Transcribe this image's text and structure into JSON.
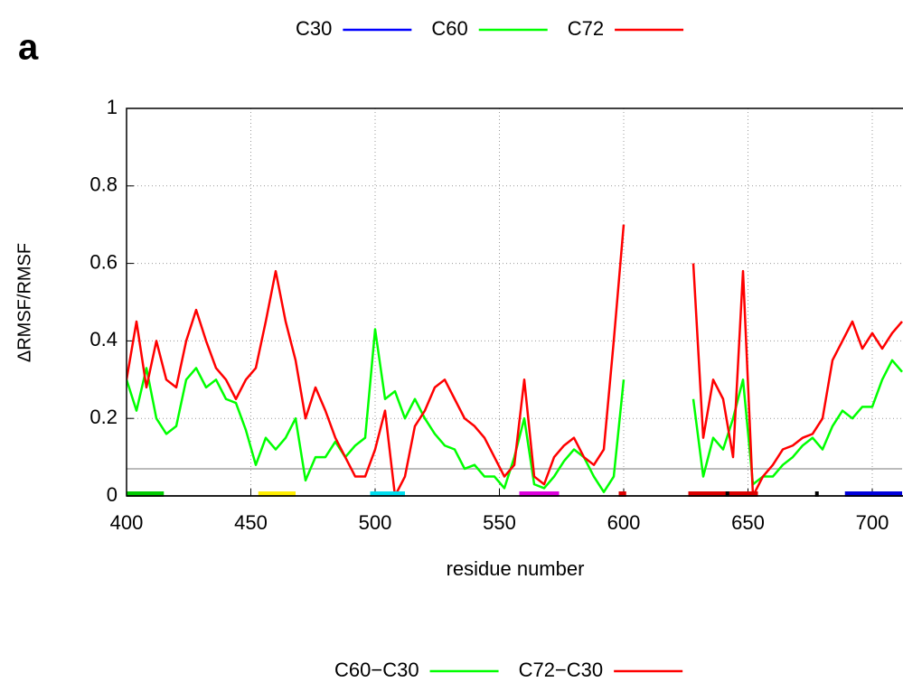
{
  "chart_data": {
    "type": "line",
    "panel_label": "a",
    "xlabel": "residue number",
    "ylabel": "ΔRMSF/RMSF",
    "xlim": [
      400,
      712
    ],
    "ylim": [
      0,
      1
    ],
    "xticks": [
      400,
      450,
      500,
      550,
      600,
      650,
      700
    ],
    "yticks": [
      0,
      0.2,
      0.4,
      0.6,
      0.8,
      1
    ],
    "grid": true,
    "reference_line": {
      "value": 0.07,
      "color": "#bbbbbb"
    },
    "legend_top": [
      {
        "name": "C30",
        "color": "#0000ff"
      },
      {
        "name": "C60",
        "color": "#00ff00"
      },
      {
        "name": "C72",
        "color": "#ff0000"
      }
    ],
    "domains": [
      {
        "start": 400,
        "end": 415,
        "color": "#00cc00"
      },
      {
        "start": 453,
        "end": 468,
        "color": "#ffee00"
      },
      {
        "start": 498,
        "end": 512,
        "color": "#00ddee"
      },
      {
        "start": 558,
        "end": 574,
        "color": "#dd00dd"
      },
      {
        "start": 598,
        "end": 601,
        "color": "#dd0000"
      },
      {
        "start": 626,
        "end": 654,
        "color": "#dd0000"
      },
      {
        "start": 641,
        "end": 642,
        "color": "#000000"
      },
      {
        "start": 677,
        "end": 678,
        "color": "#000000"
      },
      {
        "start": 689,
        "end": 712,
        "color": "#0000dd"
      }
    ],
    "x": [
      400,
      404,
      408,
      412,
      416,
      420,
      424,
      428,
      432,
      436,
      440,
      444,
      448,
      452,
      456,
      460,
      464,
      468,
      472,
      476,
      480,
      484,
      488,
      492,
      496,
      500,
      504,
      508,
      512,
      516,
      520,
      524,
      528,
      532,
      536,
      540,
      544,
      548,
      552,
      556,
      560,
      564,
      568,
      572,
      576,
      580,
      584,
      588,
      592,
      596,
      600,
      604,
      608,
      612,
      616,
      620,
      624,
      628,
      632,
      636,
      640,
      644,
      648,
      652,
      656,
      660,
      664,
      668,
      672,
      676,
      680,
      684,
      688,
      692,
      696,
      700,
      704,
      708,
      712
    ],
    "series": [
      {
        "name": "C60−C30",
        "color": "#00ff00",
        "values": [
          0.3,
          0.22,
          0.33,
          0.2,
          0.16,
          0.18,
          0.3,
          0.33,
          0.28,
          0.3,
          0.25,
          0.24,
          0.17,
          0.08,
          0.15,
          0.12,
          0.15,
          0.2,
          0.04,
          0.1,
          0.1,
          0.14,
          0.1,
          0.13,
          0.15,
          0.43,
          0.25,
          0.27,
          0.2,
          0.25,
          0.2,
          0.16,
          0.13,
          0.12,
          0.07,
          0.08,
          0.05,
          0.05,
          0.02,
          0.1,
          0.2,
          0.03,
          0.02,
          0.05,
          0.09,
          0.12,
          0.1,
          0.05,
          0.01,
          0.05,
          0.3,
          null,
          null,
          null,
          null,
          null,
          null,
          0.25,
          0.05,
          0.15,
          0.12,
          0.2,
          0.3,
          0.03,
          0.05,
          0.05,
          0.08,
          0.1,
          0.13,
          0.15,
          0.12,
          0.18,
          0.22,
          0.2,
          0.23,
          0.23,
          0.3,
          0.35,
          0.32
        ]
      },
      {
        "name": "C72−C30",
        "color": "#ff0000",
        "values": [
          0.3,
          0.45,
          0.28,
          0.4,
          0.3,
          0.28,
          0.4,
          0.48,
          0.4,
          0.33,
          0.3,
          0.25,
          0.3,
          0.33,
          0.45,
          0.58,
          0.45,
          0.35,
          0.2,
          0.28,
          0.22,
          0.15,
          0.1,
          0.05,
          0.05,
          0.12,
          0.22,
          0.0,
          0.05,
          0.18,
          0.22,
          0.28,
          0.3,
          0.25,
          0.2,
          0.18,
          0.15,
          0.1,
          0.05,
          0.08,
          0.3,
          0.05,
          0.03,
          0.1,
          0.13,
          0.15,
          0.1,
          0.08,
          0.12,
          0.4,
          0.7,
          null,
          null,
          null,
          null,
          null,
          null,
          0.6,
          0.15,
          0.3,
          0.25,
          0.1,
          0.58,
          0.0,
          0.05,
          0.08,
          0.12,
          0.13,
          0.15,
          0.16,
          0.2,
          0.35,
          0.4,
          0.45,
          0.38,
          0.42,
          0.38,
          0.42,
          0.45
        ]
      }
    ]
  }
}
